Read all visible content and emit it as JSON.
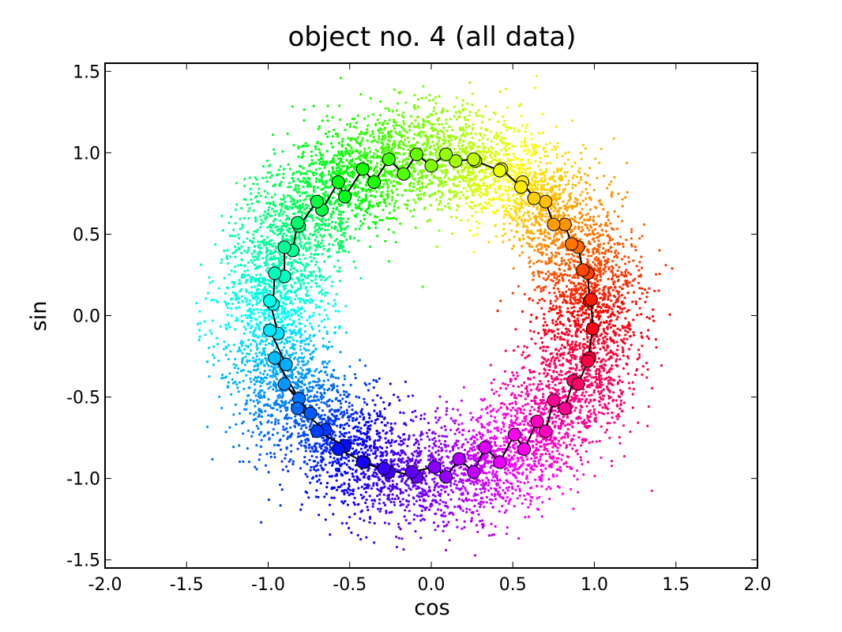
{
  "chart_data": {
    "type": "scatter",
    "title": "object no. 4 (all data)",
    "xlabel": "cos",
    "ylabel": "sin",
    "xlim": [
      -2.0,
      2.0
    ],
    "ylim": [
      -1.55,
      1.55
    ],
    "x_ticks": [
      -2.0,
      -1.5,
      -1.0,
      -0.5,
      0.0,
      0.5,
      1.0,
      1.5,
      2.0
    ],
    "x_tick_labels": [
      "-2.0",
      "-1.5",
      "-1.0",
      "-0.5",
      "0.0",
      "0.5",
      "1.0",
      "1.5",
      "2.0"
    ],
    "y_ticks": [
      -1.5,
      -1.0,
      -0.5,
      0.0,
      0.5,
      1.0,
      1.5
    ],
    "y_tick_labels": [
      "-1.5",
      "-1.0",
      "-0.5",
      "0.0",
      "0.5",
      "1.0",
      "1.5"
    ],
    "grid": false,
    "legend": "none",
    "color_encoding": "hue by angle (red at 0 rad, through yellow, green, cyan, blue, purple, magenta)",
    "series": [
      {
        "kind": "scatter-cloud",
        "description_values": {
          "count_approx": 9000,
          "center": [
            0.0,
            0.0
          ],
          "mean_radius": 1.0,
          "radius_spread_sd": 0.17,
          "angle_range_rad": [
            0,
            6.2832
          ]
        }
      },
      {
        "kind": "markers-with-line",
        "marker_color": "hue by angle",
        "line_color": "#000000",
        "points": [
          [
            0.97,
            0.09
          ],
          [
            0.96,
            0.26
          ],
          [
            0.93,
            0.28
          ],
          [
            0.9,
            0.42
          ],
          [
            0.86,
            0.44
          ],
          [
            0.82,
            0.56
          ],
          [
            0.75,
            0.56
          ],
          [
            0.7,
            0.7
          ],
          [
            0.63,
            0.72
          ],
          [
            0.56,
            0.82
          ],
          [
            0.55,
            0.79
          ],
          [
            0.43,
            0.9
          ],
          [
            0.42,
            0.89
          ],
          [
            0.27,
            0.95
          ],
          [
            0.26,
            0.96
          ],
          [
            0.15,
            0.95
          ],
          [
            0.09,
            0.99
          ],
          [
            0.0,
            0.92
          ],
          [
            -0.09,
            0.99
          ],
          [
            -0.17,
            0.87
          ],
          [
            -0.26,
            0.96
          ],
          [
            -0.35,
            0.82
          ],
          [
            -0.42,
            0.9
          ],
          [
            -0.53,
            0.73
          ],
          [
            -0.57,
            0.82
          ],
          [
            -0.67,
            0.65
          ],
          [
            -0.7,
            0.7
          ],
          [
            -0.81,
            0.55
          ],
          [
            -0.82,
            0.57
          ],
          [
            -0.85,
            0.4
          ],
          [
            -0.9,
            0.42
          ],
          [
            -0.9,
            0.24
          ],
          [
            -0.96,
            0.26
          ],
          [
            -0.97,
            0.07
          ],
          [
            -0.99,
            0.09
          ],
          [
            -0.94,
            -0.11
          ],
          [
            -0.99,
            -0.09
          ],
          [
            -0.89,
            -0.3
          ],
          [
            -0.96,
            -0.26
          ],
          [
            -0.81,
            -0.51
          ],
          [
            -0.9,
            -0.42
          ],
          [
            -0.74,
            -0.6
          ],
          [
            -0.82,
            -0.57
          ],
          [
            -0.65,
            -0.7
          ],
          [
            -0.7,
            -0.71
          ],
          [
            -0.53,
            -0.8
          ],
          [
            -0.57,
            -0.82
          ],
          [
            -0.41,
            -0.9
          ],
          [
            -0.42,
            -0.9
          ],
          [
            -0.26,
            -0.96
          ],
          [
            -0.29,
            -0.94
          ],
          [
            -0.09,
            -0.99
          ],
          [
            -0.12,
            -0.96
          ],
          [
            0.02,
            -0.93
          ],
          [
            0.09,
            -0.99
          ],
          [
            0.17,
            -0.88
          ],
          [
            0.26,
            -0.96
          ],
          [
            0.33,
            -0.81
          ],
          [
            0.42,
            -0.9
          ],
          [
            0.51,
            -0.73
          ],
          [
            0.57,
            -0.82
          ],
          [
            0.65,
            -0.65
          ],
          [
            0.7,
            -0.71
          ],
          [
            0.75,
            -0.52
          ],
          [
            0.82,
            -0.57
          ],
          [
            0.87,
            -0.4
          ],
          [
            0.9,
            -0.42
          ],
          [
            0.97,
            -0.26
          ],
          [
            0.96,
            -0.28
          ],
          [
            0.99,
            -0.08
          ],
          [
            0.98,
            0.1
          ]
        ]
      }
    ]
  }
}
